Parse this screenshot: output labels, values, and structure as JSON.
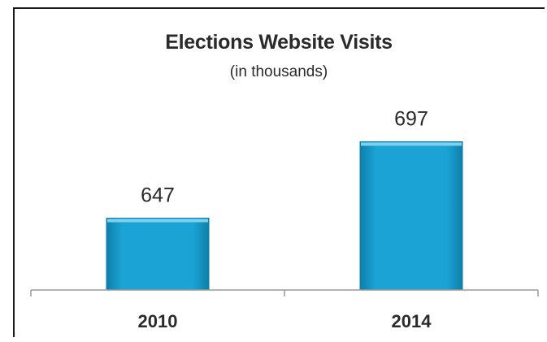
{
  "chart_data": {
    "type": "bar",
    "title": "Elections Website Visits",
    "subtitle": "(in thousands)",
    "xlabel": "",
    "ylabel": "",
    "categories": [
      "2010",
      "2014"
    ],
    "values": [
      647,
      697
    ],
    "data_labels": [
      "647",
      "697"
    ],
    "ylim": [
      600,
      710
    ],
    "grid": false,
    "legend": "none",
    "bar_color": "#1aa3d4",
    "bar_top_color": "#7fd0ee",
    "bar_edge_color": "#0e7fa8",
    "axis_color": "#9a9a9a",
    "text_color": "#2a2a2a"
  }
}
